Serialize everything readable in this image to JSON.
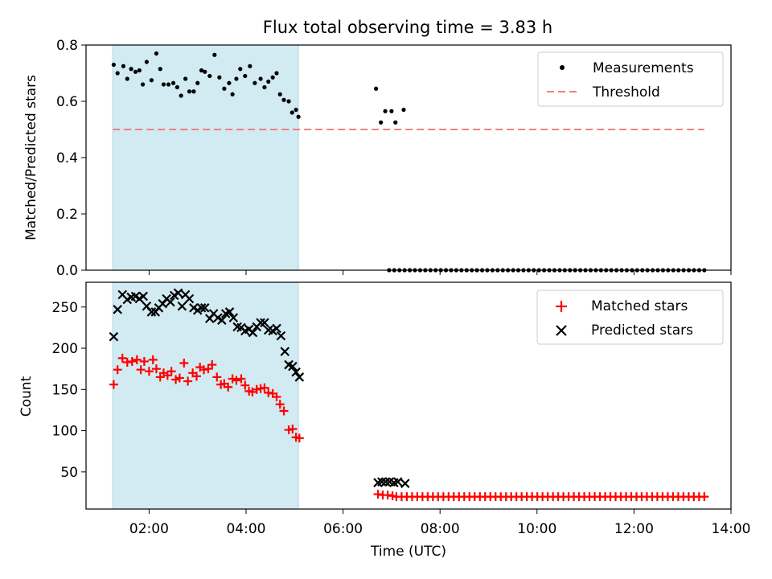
{
  "title": "Flux total observing time = 3.83 h",
  "colors": {
    "shade": "#add8e6",
    "measurement": "#000000",
    "threshold": "#f08080",
    "matched": "#ff0000",
    "predicted": "#000000"
  },
  "shade_range_hours": [
    1.25,
    5.08
  ],
  "chart_data": [
    {
      "type": "scatter",
      "panel": "top",
      "xlabel": "",
      "ylabel": "Matched/Predicted stars",
      "xlim": [
        0.7,
        14.0
      ],
      "ylim": [
        0.0,
        0.8
      ],
      "yticks": [
        0.0,
        0.2,
        0.4,
        0.6,
        0.8
      ],
      "ytick_labels": [
        "0.0",
        "0.2",
        "0.4",
        "0.6",
        "0.8"
      ],
      "legend_position": "top-right",
      "legend": [
        "Measurements",
        "Threshold"
      ],
      "threshold": {
        "value": 0.5,
        "x_range": [
          1.25,
          13.45
        ]
      },
      "series": [
        {
          "name": "Measurements",
          "x": [
            1.27,
            1.35,
            1.47,
            1.55,
            1.63,
            1.72,
            1.8,
            1.87,
            1.95,
            2.05,
            2.15,
            2.23,
            2.3,
            2.4,
            2.5,
            2.58,
            2.66,
            2.75,
            2.83,
            2.92,
            3.0,
            3.08,
            3.15,
            3.25,
            3.35,
            3.45,
            3.55,
            3.65,
            3.72,
            3.8,
            3.88,
            3.98,
            4.08,
            4.18,
            4.3,
            4.38,
            4.46,
            4.55,
            4.63,
            4.7,
            4.78,
            4.88,
            4.95,
            5.03,
            5.08
          ],
          "values": [
            0.73,
            0.7,
            0.725,
            0.68,
            0.715,
            0.705,
            0.71,
            0.66,
            0.74,
            0.675,
            0.77,
            0.715,
            0.66,
            0.66,
            0.665,
            0.65,
            0.62,
            0.68,
            0.635,
            0.635,
            0.665,
            0.71,
            0.705,
            0.69,
            0.765,
            0.685,
            0.645,
            0.665,
            0.625,
            0.68,
            0.715,
            0.69,
            0.725,
            0.665,
            0.68,
            0.65,
            0.67,
            0.685,
            0.7,
            0.625,
            0.605,
            0.6,
            0.56,
            0.57,
            0.545
          ]
        },
        {
          "name": "Measurements (after gap)",
          "x": [
            6.68,
            6.78,
            6.87,
            7.0,
            7.08,
            7.25
          ],
          "values": [
            0.645,
            0.525,
            0.565,
            0.565,
            0.525,
            0.57
          ]
        },
        {
          "name": "Measurements (zero)",
          "x_range": [
            6.95,
            13.45
          ],
          "count": 62,
          "value": 0.0
        }
      ]
    },
    {
      "type": "scatter",
      "panel": "bottom",
      "xlabel": "Time (UTC)",
      "ylabel": "Count",
      "xlim": [
        0.7,
        14.0
      ],
      "ylim": [
        5,
        280
      ],
      "xticks": [
        2,
        4,
        6,
        8,
        10,
        12,
        14
      ],
      "xtick_labels": [
        "02:00",
        "04:00",
        "06:00",
        "08:00",
        "10:00",
        "12:00",
        "14:00"
      ],
      "yticks": [
        50,
        100,
        150,
        200,
        250
      ],
      "ytick_labels": [
        "50",
        "100",
        "150",
        "200",
        "250"
      ],
      "legend_position": "top-right",
      "legend": [
        "Matched stars",
        "Predicted stars"
      ],
      "series": [
        {
          "name": "Matched stars",
          "x": [
            1.27,
            1.35,
            1.45,
            1.55,
            1.65,
            1.75,
            1.83,
            1.9,
            2.0,
            2.08,
            2.15,
            2.23,
            2.3,
            2.38,
            2.46,
            2.55,
            2.63,
            2.72,
            2.8,
            2.9,
            2.98,
            3.05,
            3.13,
            3.22,
            3.3,
            3.4,
            3.48,
            3.55,
            3.63,
            3.72,
            3.8,
            3.9,
            3.98,
            4.06,
            4.13,
            4.22,
            4.3,
            4.38,
            4.46,
            4.55,
            4.63,
            4.7,
            4.78,
            4.88,
            4.96,
            5.03,
            5.1
          ],
          "values": [
            156,
            174,
            188,
            183,
            184,
            186,
            174,
            184,
            172,
            186,
            175,
            165,
            170,
            167,
            172,
            162,
            164,
            182,
            160,
            170,
            166,
            177,
            174,
            175,
            180,
            165,
            156,
            157,
            153,
            163,
            161,
            163,
            155,
            148,
            147,
            150,
            151,
            152,
            146,
            145,
            141,
            132,
            124,
            101,
            102,
            92,
            91
          ]
        },
        {
          "name": "Matched stars (after gap)",
          "x": [
            6.72,
            6.82,
            6.92,
            7.02
          ],
          "values": [
            23,
            22,
            22,
            21
          ],
          "tail_x_range": [
            7.1,
            13.45
          ],
          "tail_count": 60,
          "tail_value": 20
        },
        {
          "name": "Predicted stars",
          "x": [
            1.27,
            1.35,
            1.45,
            1.55,
            1.63,
            1.72,
            1.8,
            1.88,
            1.95,
            2.05,
            2.13,
            2.2,
            2.28,
            2.36,
            2.44,
            2.52,
            2.6,
            2.68,
            2.75,
            2.83,
            2.92,
            3.0,
            3.08,
            3.15,
            3.25,
            3.33,
            3.42,
            3.5,
            3.58,
            3.66,
            3.74,
            3.82,
            3.9,
            3.98,
            4.06,
            4.14,
            4.22,
            4.3,
            4.38,
            4.46,
            4.55,
            4.63,
            4.72,
            4.8,
            4.88,
            4.96,
            5.03,
            5.1
          ],
          "values": [
            214,
            247,
            265,
            259,
            262,
            263,
            260,
            263,
            251,
            244,
            244,
            249,
            254,
            260,
            256,
            264,
            267,
            251,
            265,
            260,
            249,
            246,
            249,
            249,
            236,
            242,
            237,
            234,
            242,
            244,
            237,
            226,
            225,
            221,
            223,
            219,
            226,
            231,
            231,
            222,
            221,
            224,
            215,
            196,
            180,
            178,
            171,
            165
          ]
        },
        {
          "name": "Predicted stars (after gap)",
          "x": [
            6.72,
            6.8,
            6.88,
            6.96,
            7.05,
            7.13,
            7.28
          ],
          "values": [
            37,
            38,
            38,
            38,
            37,
            38,
            36
          ]
        }
      ]
    }
  ]
}
